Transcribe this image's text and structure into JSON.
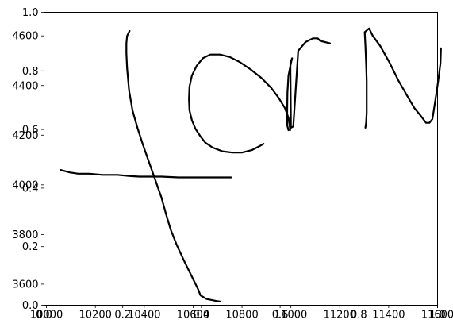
{
  "chart_data": [
    {
      "type": "line",
      "title": "",
      "xlabel": "",
      "ylabel": "",
      "xlim": [
        0,
        1
      ],
      "ylim": [
        0,
        1
      ],
      "grid": false,
      "x_ticks": [
        {
          "value": 0.0,
          "label": "0.0"
        },
        {
          "value": 0.2,
          "label": "0.2"
        },
        {
          "value": 0.4,
          "label": "0.4"
        },
        {
          "value": 0.6,
          "label": "0.6"
        },
        {
          "value": 0.8,
          "label": "0.8"
        },
        {
          "value": 1.0,
          "label": "1.0"
        }
      ],
      "y_ticks": [
        {
          "value": 0.0,
          "label": "0.0"
        },
        {
          "value": 0.2,
          "label": "0.2"
        },
        {
          "value": 0.4,
          "label": "0.4"
        },
        {
          "value": 0.6,
          "label": "0.6"
        },
        {
          "value": 0.8,
          "label": "0.8"
        },
        {
          "value": 1.0,
          "label": "1.0"
        }
      ],
      "series": []
    },
    {
      "type": "line",
      "title": "",
      "xlabel": "",
      "ylabel": "",
      "xlim": [
        9990,
        11600
      ],
      "ylim": [
        3515,
        4695
      ],
      "grid": false,
      "line_color": "#000000",
      "x_ticks": [
        {
          "value": 10000,
          "label": "10000"
        },
        {
          "value": 10200,
          "label": "10200"
        },
        {
          "value": 10400,
          "label": "10400"
        },
        {
          "value": 10600,
          "label": "10600"
        },
        {
          "value": 10800,
          "label": "10800"
        },
        {
          "value": 11000,
          "label": "11000"
        },
        {
          "value": 11200,
          "label": "11200"
        },
        {
          "value": 11400,
          "label": "11400"
        },
        {
          "value": 11600,
          "label": "11600"
        }
      ],
      "y_ticks": [
        {
          "value": 3600,
          "label": "3600"
        },
        {
          "value": 3800,
          "label": "3800"
        },
        {
          "value": 4000,
          "label": "4000"
        },
        {
          "value": 4200,
          "label": "4200"
        },
        {
          "value": 4400,
          "label": "4400"
        },
        {
          "value": 4600,
          "label": "4600"
        }
      ],
      "series": [
        {
          "x": [
            10058,
            10095,
            10130,
            10175,
            10230,
            10290,
            10345,
            10380,
            10420,
            10470,
            10540,
            10640,
            10755
          ],
          "y": [
            4060,
            4050,
            4045,
            4045,
            4040,
            4040,
            4035,
            4033,
            4033,
            4033,
            4030,
            4030,
            4030
          ]
        },
        {
          "x": [
            10340,
            10330,
            10327,
            10327,
            10330,
            10338,
            10352,
            10372,
            10395,
            10420,
            10445,
            10470,
            10490,
            10508,
            10532,
            10565,
            10595,
            10620,
            10630,
            10655,
            10680,
            10695,
            10710
          ],
          "y": [
            4620,
            4600,
            4570,
            4530,
            4470,
            4380,
            4300,
            4230,
            4160,
            4090,
            4020,
            3950,
            3880,
            3820,
            3760,
            3690,
            3630,
            3580,
            3555,
            3540,
            3535,
            3532,
            3530
          ]
        },
        {
          "x": [
            10888,
            10870,
            10840,
            10800,
            10760,
            10720,
            10680,
            10650,
            10630,
            10610,
            10595,
            10585,
            10583,
            10585,
            10595,
            10615,
            10640,
            10670,
            10710,
            10750,
            10790,
            10835,
            10880,
            10920,
            10950,
            10975,
            10990,
            10995,
            10997
          ],
          "y": [
            4165,
            4155,
            4140,
            4130,
            4130,
            4135,
            4150,
            4170,
            4195,
            4225,
            4260,
            4300,
            4345,
            4395,
            4440,
            4480,
            4510,
            4525,
            4525,
            4515,
            4495,
            4465,
            4430,
            4390,
            4350,
            4310,
            4270,
            4240,
            4220
          ]
        },
        {
          "x": [
            10990,
            10985,
            10985,
            10986,
            10990,
            11000,
            11005,
            10998,
            11000,
            11010,
            11030,
            11060,
            11090,
            11110,
            11120,
            11160
          ],
          "y": [
            4220,
            4240,
            4300,
            4370,
            4440,
            4490,
            4510,
            4490,
            4230,
            4235,
            4540,
            4575,
            4590,
            4590,
            4580,
            4570
          ]
        },
        {
          "x": [
            11305,
            11308,
            11310,
            11310,
            11310,
            11308,
            11305,
            11302,
            11320,
            11335,
            11365,
            11405,
            11440,
            11475,
            11505,
            11530,
            11545,
            11553,
            11567,
            11579,
            11583,
            11591,
            11603,
            11612,
            11614
          ],
          "y": [
            4230,
            4250,
            4290,
            4350,
            4420,
            4490,
            4560,
            4615,
            4630,
            4600,
            4560,
            4490,
            4420,
            4360,
            4310,
            4280,
            4260,
            4250,
            4250,
            4265,
            4290,
            4340,
            4420,
            4490,
            4550
          ]
        }
      ]
    }
  ]
}
